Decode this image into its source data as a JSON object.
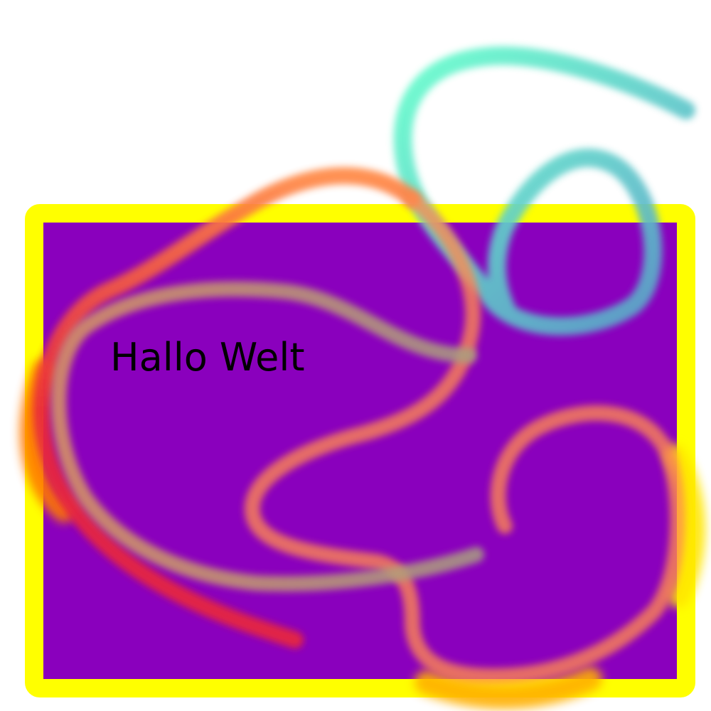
{
  "canvas": {
    "background": "#ffffff",
    "panel_fill": "#8a00bd",
    "panel_border": "#ffff00"
  },
  "greeting": {
    "text": "Hallo Welt",
    "color": "#000000"
  },
  "strokes": {
    "colors": {
      "mint": "#66ffcc",
      "orange": "#ff8844",
      "red": "#e8283c",
      "tan": "#d8a060",
      "gold": "#ffcc00"
    }
  }
}
